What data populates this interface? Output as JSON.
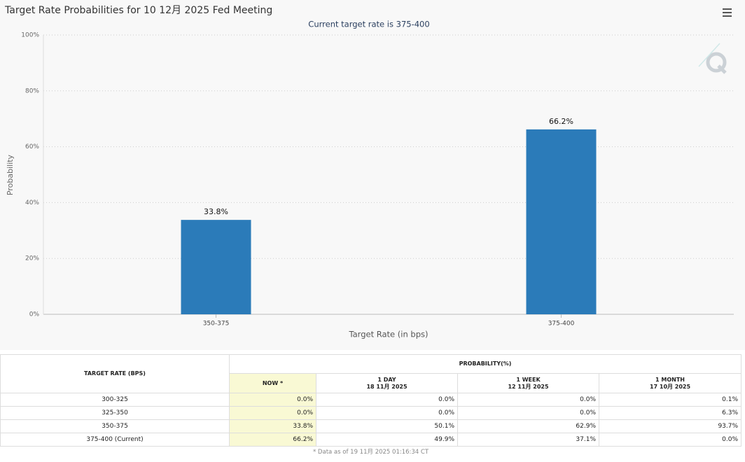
{
  "chart_data": {
    "type": "bar",
    "title": "Target Rate Probabilities for 10 12月 2025 Fed Meeting",
    "subtitle": "Current target rate is 375-400",
    "x_label": "Target Rate (in bps)",
    "y_label": "Probability",
    "categories": [
      "350-375",
      "375-400"
    ],
    "values": [
      33.8,
      66.2
    ],
    "value_labels": [
      "33.8%",
      "66.2%"
    ],
    "color": "#2b7bb9",
    "ylim": [
      0,
      100
    ],
    "yticks": [
      {
        "value": 0,
        "label": "0%"
      },
      {
        "value": 20,
        "label": "20%"
      },
      {
        "value": 40,
        "label": "40%"
      },
      {
        "value": 60,
        "label": "60%"
      },
      {
        "value": 80,
        "label": "80%"
      },
      {
        "value": 100,
        "label": "100%"
      }
    ],
    "grid": true
  },
  "table": {
    "header": {
      "rate": "TARGET RATE (BPS)",
      "probability": "PROBABILITY(%)",
      "columns": [
        {
          "name": "NOW *"
        },
        {
          "name": "1 DAY",
          "date": "18 11月 2025"
        },
        {
          "name": "1 WEEK",
          "date": "12 11月 2025"
        },
        {
          "name": "1 MONTH",
          "date": "17 10月 2025"
        }
      ]
    },
    "rows": [
      [
        "300-325",
        "0.0%",
        "0.0%",
        "0.0%",
        "0.1%"
      ],
      [
        "325-350",
        "0.0%",
        "0.0%",
        "0.0%",
        "6.3%"
      ],
      [
        "350-375",
        "33.8%",
        "50.1%",
        "62.9%",
        "93.7%"
      ],
      [
        "375-400 (Current)",
        "66.2%",
        "49.9%",
        "37.1%",
        "0.0%"
      ]
    ],
    "footnote": "* Data as of 19 11月 2025 01:16:34 CT"
  }
}
